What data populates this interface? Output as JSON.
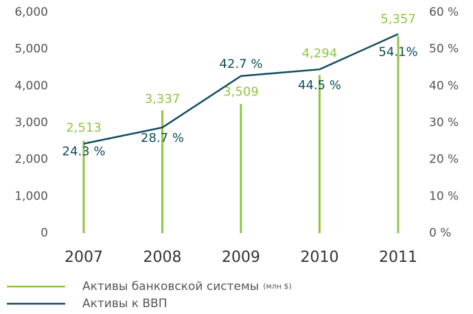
{
  "chart_data": {
    "type": "bar-line",
    "categories": [
      "2007",
      "2008",
      "2009",
      "2010",
      "2011"
    ],
    "series": [
      {
        "name": "Активы банковской системы",
        "type": "bar",
        "color": "#8dc63f",
        "values": [
          2513,
          3337,
          3509,
          4294,
          5357
        ],
        "value_labels": [
          "2,513",
          "3,337",
          "3,509",
          "4,294",
          "5,357"
        ]
      },
      {
        "name": "Активы к ВВП",
        "type": "line",
        "axis": "y2",
        "color": "#0f4c5c",
        "values": [
          24.3,
          28.7,
          42.7,
          44.5,
          54.1
        ],
        "value_labels": [
          "24.3 %",
          "28.7 %",
          "42.7 %",
          "44.5 %",
          "54.1%"
        ]
      }
    ],
    "legend_unit": "(млн $)",
    "ylim": [
      0,
      6000
    ],
    "yticks": [
      0,
      {
        "value": 1000,
        "label": "1,000"
      },
      {
        "value": 2000,
        "label": "2,000"
      },
      {
        "value": 3000,
        "label": "3,000"
      },
      {
        "value": 4000,
        "label": "4,000"
      },
      {
        "value": 5000,
        "label": "5,000"
      },
      {
        "value": 6000,
        "label": "6,000"
      }
    ],
    "y2lim": [
      0,
      60
    ],
    "y2ticks": [
      {
        "value": 0,
        "label": "0 %"
      },
      {
        "value": 10,
        "label": "10 %"
      },
      {
        "value": 20,
        "label": "20 %"
      },
      {
        "value": 30,
        "label": "30 %"
      },
      {
        "value": 40,
        "label": "40 %"
      },
      {
        "value": 50,
        "label": "50 %"
      },
      {
        "value": 60,
        "label": "60 %"
      }
    ],
    "legend": "bottom-left",
    "grid": false
  }
}
